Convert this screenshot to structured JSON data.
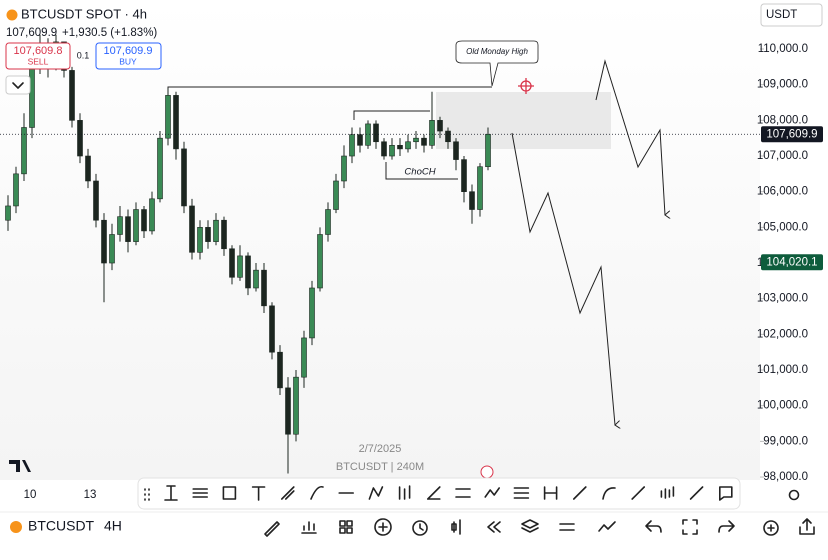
{
  "header": {
    "symbol": "BTCUSDT SPOT · 4h",
    "last": "107,609.9",
    "change": "+1,930.5 (+1.83%)"
  },
  "order": {
    "sell_price": "107,609.8",
    "sell": "SELL",
    "spread": "0.1",
    "buy_price": "107,609.9",
    "buy": "BUY"
  },
  "currency": "USDT",
  "chart_data": {
    "type": "candlestick",
    "open": [
      105200,
      105600,
      106500,
      107800,
      109500,
      110100,
      109600,
      110200,
      109400,
      108000,
      107000,
      106300,
      105200,
      104000,
      104800,
      105300,
      104600,
      105500,
      104900,
      105800,
      107500,
      108700,
      107200,
      105600,
      104300,
      105000,
      104600,
      105200,
      104400,
      103600,
      104200,
      103300,
      103800,
      102800,
      101500,
      100500,
      99200,
      100800,
      101900,
      103300,
      104800,
      105500,
      106300,
      107000,
      107600,
      107300,
      107900,
      107400,
      107000,
      107300,
      107200,
      107400,
      107500,
      107300,
      108000,
      107700,
      107400,
      106900,
      106000,
      105500,
      106700
    ],
    "high": [
      105900,
      106700,
      108200,
      110000,
      110400,
      110300,
      110400,
      110200,
      109500,
      108200,
      107200,
      106500,
      105400,
      105100,
      105600,
      105500,
      105700,
      105600,
      106000,
      107700,
      108900,
      108800,
      107400,
      105800,
      105200,
      105200,
      105400,
      105300,
      104500,
      104500,
      104300,
      104000,
      104000,
      102900,
      101700,
      100800,
      101000,
      102100,
      103500,
      105000,
      105700,
      106500,
      107300,
      107800,
      107800,
      108000,
      108000,
      107500,
      107500,
      107500,
      107600,
      107700,
      107600,
      108800,
      108100,
      107800,
      107500,
      107000,
      106200,
      106800,
      107800
    ],
    "low": [
      104900,
      105400,
      106300,
      107500,
      109300,
      109200,
      109400,
      109200,
      107800,
      106800,
      106100,
      105000,
      102900,
      103800,
      104600,
      104300,
      104500,
      104700,
      104800,
      105700,
      107300,
      106900,
      105400,
      104100,
      104100,
      104400,
      104500,
      104200,
      103400,
      103500,
      103100,
      103200,
      102600,
      101300,
      100300,
      98100,
      99000,
      100500,
      101700,
      103200,
      104600,
      105400,
      106100,
      106800,
      107100,
      107200,
      107200,
      106900,
      106900,
      107000,
      107100,
      107200,
      107100,
      107200,
      107500,
      107200,
      106600,
      105700,
      105100,
      105300,
      106600
    ],
    "close": [
      105600,
      106500,
      107800,
      109500,
      110100,
      109600,
      110200,
      109400,
      108000,
      107000,
      106300,
      105200,
      104000,
      104800,
      105300,
      104600,
      105500,
      104900,
      105800,
      107500,
      108700,
      107200,
      105600,
      104300,
      105000,
      104600,
      105200,
      104400,
      103600,
      104200,
      103300,
      103800,
      102800,
      101500,
      100500,
      99200,
      100800,
      101900,
      103300,
      104800,
      105500,
      106300,
      107000,
      107600,
      107300,
      107900,
      107400,
      107000,
      107300,
      107200,
      107400,
      107500,
      107300,
      108000,
      107700,
      107400,
      106900,
      106000,
      105500,
      106700,
      107609.9
    ],
    "up_color": "#3a8a55",
    "down_color": "#1c2620",
    "ylim": [
      97917,
      111374
    ],
    "yticks": [
      {
        "value": 98000,
        "label": "98,000.0"
      },
      {
        "value": 99000,
        "label": "99,000.0"
      },
      {
        "value": 100000,
        "label": "100,000.0"
      },
      {
        "value": 101000,
        "label": "101,000.0"
      },
      {
        "value": 102000,
        "label": "102,000.0"
      },
      {
        "value": 103000,
        "label": "103,000.0"
      },
      {
        "value": 104000,
        "label": "104,000.0"
      },
      {
        "value": 105000,
        "label": "105,000.0"
      },
      {
        "value": 106000,
        "label": "106,000.0"
      },
      {
        "value": 107000,
        "label": "107,000.0"
      },
      {
        "value": 108000,
        "label": "108,000.0"
      },
      {
        "value": 109000,
        "label": "109,000.0"
      },
      {
        "value": 110000,
        "label": "110,000.0"
      }
    ],
    "x_labels": [
      "10",
      "13"
    ],
    "date": "2/7/2025",
    "watermark": "BTCUSDT | 240M",
    "price_lines": [
      {
        "value": 107609.9,
        "label": "107,609.9",
        "color": "#131722"
      },
      {
        "value": 104020.1,
        "label": "104,020.1",
        "color": "#0e5c3c"
      }
    ],
    "annotations": [
      "Old Monday High",
      "ChoCH"
    ]
  },
  "footer": {
    "symbol": "BTCUSDT",
    "interval": "4H"
  }
}
